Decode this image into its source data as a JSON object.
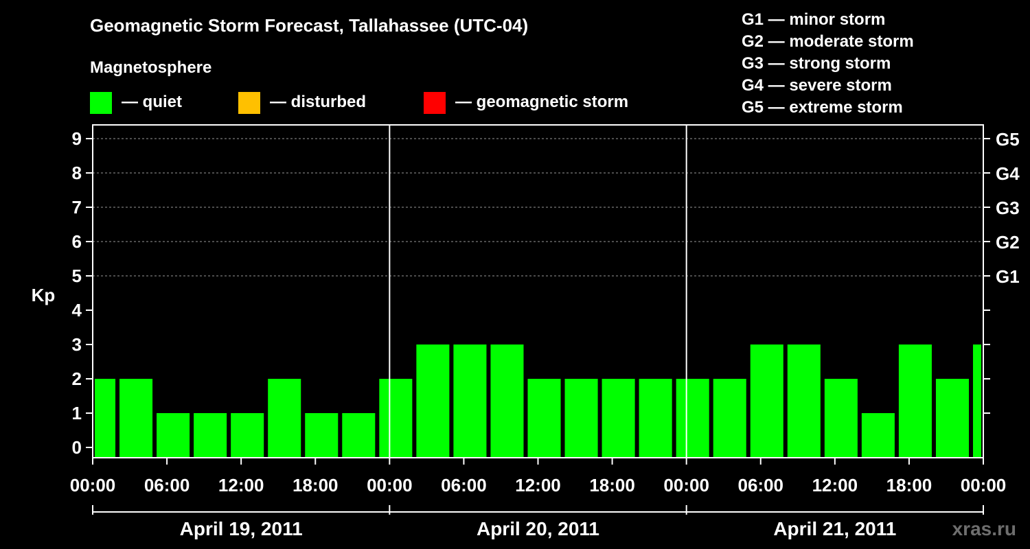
{
  "header": {
    "title": "Geomagnetic Storm Forecast, Tallahassee (UTC-04)",
    "subtitle": "Magnetosphere"
  },
  "legend": [
    {
      "label": "— quiet",
      "color": "#00ff00"
    },
    {
      "label": "— disturbed",
      "color": "#ffc000"
    },
    {
      "label": "— geomagnetic storm",
      "color": "#ff0000"
    }
  ],
  "g_legend": [
    "G1 — minor storm",
    "G2 — moderate storm",
    "G3 — strong storm",
    "G4 — severe storm",
    "G5 — extreme storm"
  ],
  "watermark": "xras.ru",
  "chart_data": {
    "type": "bar",
    "ylabel": "Kp",
    "ylim": [
      0,
      9
    ],
    "yticks": [
      "0",
      "1",
      "2",
      "3",
      "4",
      "5",
      "6",
      "7",
      "8",
      "9"
    ],
    "right_ticks": [
      {
        "kp": 5,
        "label": "G1"
      },
      {
        "kp": 6,
        "label": "G2"
      },
      {
        "kp": 7,
        "label": "G3"
      },
      {
        "kp": 8,
        "label": "G4"
      },
      {
        "kp": 9,
        "label": "G5"
      }
    ],
    "x_range_hours": [
      0,
      72
    ],
    "xtick_labels": [
      "00:00",
      "06:00",
      "12:00",
      "18:00",
      "00:00",
      "06:00",
      "12:00",
      "18:00",
      "00:00",
      "06:00",
      "12:00",
      "18:00",
      "00:00"
    ],
    "days": [
      "April 19, 2011",
      "April 20, 2011",
      "April 21, 2011"
    ],
    "grid": "horizontal dashed at Kp 5–9",
    "bar_color": "#00ff00",
    "bars": [
      {
        "start": 0,
        "end": 2,
        "kp": 2
      },
      {
        "start": 2,
        "end": 5,
        "kp": 2
      },
      {
        "start": 5,
        "end": 8,
        "kp": 1
      },
      {
        "start": 8,
        "end": 11,
        "kp": 1
      },
      {
        "start": 11,
        "end": 14,
        "kp": 1
      },
      {
        "start": 14,
        "end": 17,
        "kp": 2
      },
      {
        "start": 17,
        "end": 20,
        "kp": 1
      },
      {
        "start": 20,
        "end": 23,
        "kp": 1
      },
      {
        "start": 23,
        "end": 26,
        "kp": 2
      },
      {
        "start": 26,
        "end": 29,
        "kp": 3
      },
      {
        "start": 29,
        "end": 32,
        "kp": 3
      },
      {
        "start": 32,
        "end": 35,
        "kp": 3
      },
      {
        "start": 35,
        "end": 38,
        "kp": 2
      },
      {
        "start": 38,
        "end": 41,
        "kp": 2
      },
      {
        "start": 41,
        "end": 44,
        "kp": 2
      },
      {
        "start": 44,
        "end": 47,
        "kp": 2
      },
      {
        "start": 47,
        "end": 50,
        "kp": 2
      },
      {
        "start": 50,
        "end": 53,
        "kp": 2
      },
      {
        "start": 53,
        "end": 56,
        "kp": 3
      },
      {
        "start": 56,
        "end": 59,
        "kp": 3
      },
      {
        "start": 59,
        "end": 62,
        "kp": 2
      },
      {
        "start": 62,
        "end": 65,
        "kp": 1
      },
      {
        "start": 65,
        "end": 68,
        "kp": 3
      },
      {
        "start": 68,
        "end": 71,
        "kp": 2
      },
      {
        "start": 71,
        "end": 72,
        "kp": 3
      }
    ]
  }
}
